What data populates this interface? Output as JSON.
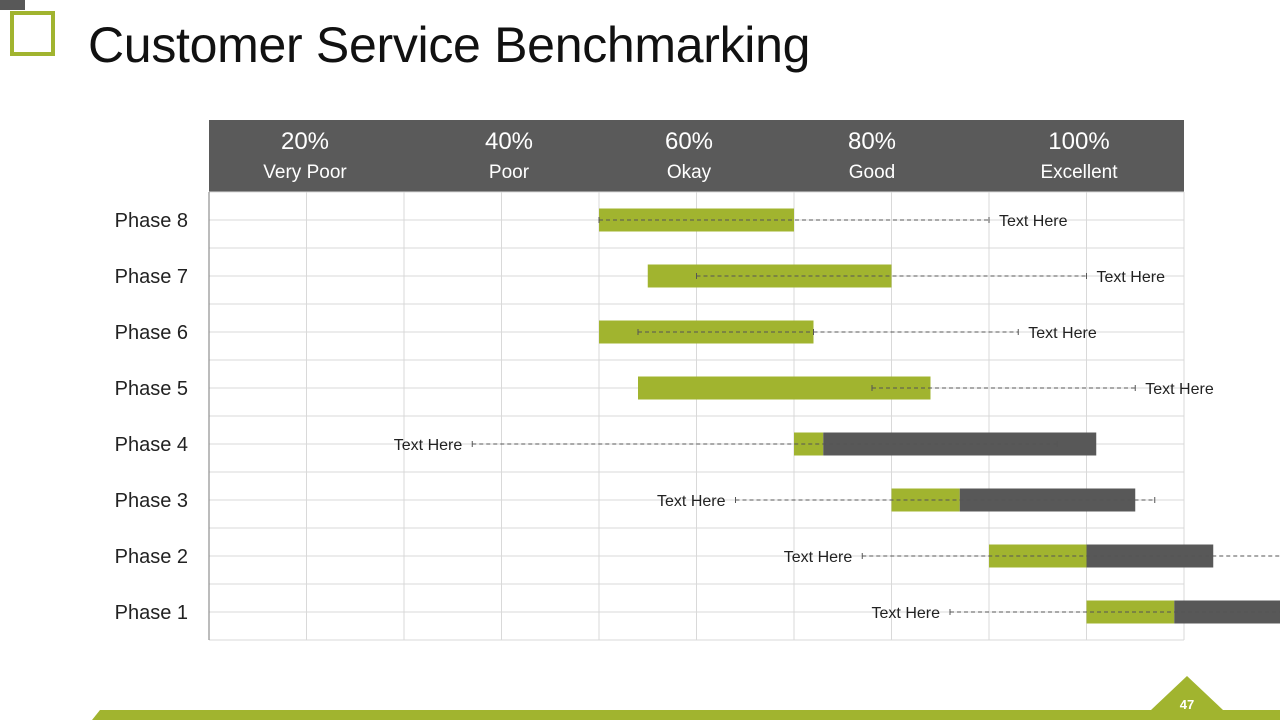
{
  "slide": {
    "title": "Customer Service Benchmarking",
    "page_number": "47"
  },
  "colors": {
    "accent": "#a1b42f",
    "dark": "#585858",
    "grid": "#d9d9d9",
    "band": "#5a5a5a"
  },
  "header": [
    {
      "pct": "20%",
      "label": "Very Poor"
    },
    {
      "pct": "40%",
      "label": "Poor"
    },
    {
      "pct": "60%",
      "label": "Okay"
    },
    {
      "pct": "80%",
      "label": "Good"
    },
    {
      "pct": "100%",
      "label": "Excellent"
    }
  ],
  "chart_data": {
    "type": "bar",
    "title": "Customer Service Benchmarking",
    "xlim": [
      0,
      100
    ],
    "grid": true,
    "categories": [
      "Phase 8",
      "Phase 7",
      "Phase 6",
      "Phase 5",
      "Phase 4",
      "Phase 3",
      "Phase 2",
      "Phase 1"
    ],
    "rows": [
      {
        "label": "Phase 8",
        "green": [
          40,
          60
        ],
        "dark": null,
        "line": [
          40,
          80
        ],
        "text": "Text Here",
        "text_side": "right"
      },
      {
        "label": "Phase 7",
        "green": [
          45,
          70
        ],
        "dark": null,
        "line": [
          50,
          90
        ],
        "text": "Text Here",
        "text_side": "right"
      },
      {
        "label": "Phase 6",
        "green": [
          40,
          62
        ],
        "dark": null,
        "line": [
          44,
          62
        ],
        "line2": [
          62,
          83
        ],
        "text": "Text Here",
        "text_side": "right"
      },
      {
        "label": "Phase 5",
        "green": [
          44,
          74
        ],
        "dark": null,
        "line": [
          68,
          95
        ],
        "text": "Text Here",
        "text_side": "right"
      },
      {
        "label": "Phase 4",
        "green": [
          60,
          63
        ],
        "dark": [
          63,
          91
        ],
        "line": [
          27,
          87
        ],
        "text": "Text Here",
        "text_side": "left"
      },
      {
        "label": "Phase 3",
        "green": [
          70,
          77
        ],
        "dark": [
          77,
          95
        ],
        "line": [
          54,
          97
        ],
        "text": "Text Here",
        "text_side": "left"
      },
      {
        "label": "Phase 2",
        "green": [
          80,
          90
        ],
        "dark": [
          90,
          103
        ],
        "line": [
          67,
          110
        ],
        "text": "Text Here",
        "text_side": "left"
      },
      {
        "label": "Phase 1",
        "green": [
          90,
          99
        ],
        "dark": [
          99,
          118
        ],
        "line": [
          76,
          120
        ],
        "text": "Text Here",
        "text_side": "left"
      }
    ]
  }
}
